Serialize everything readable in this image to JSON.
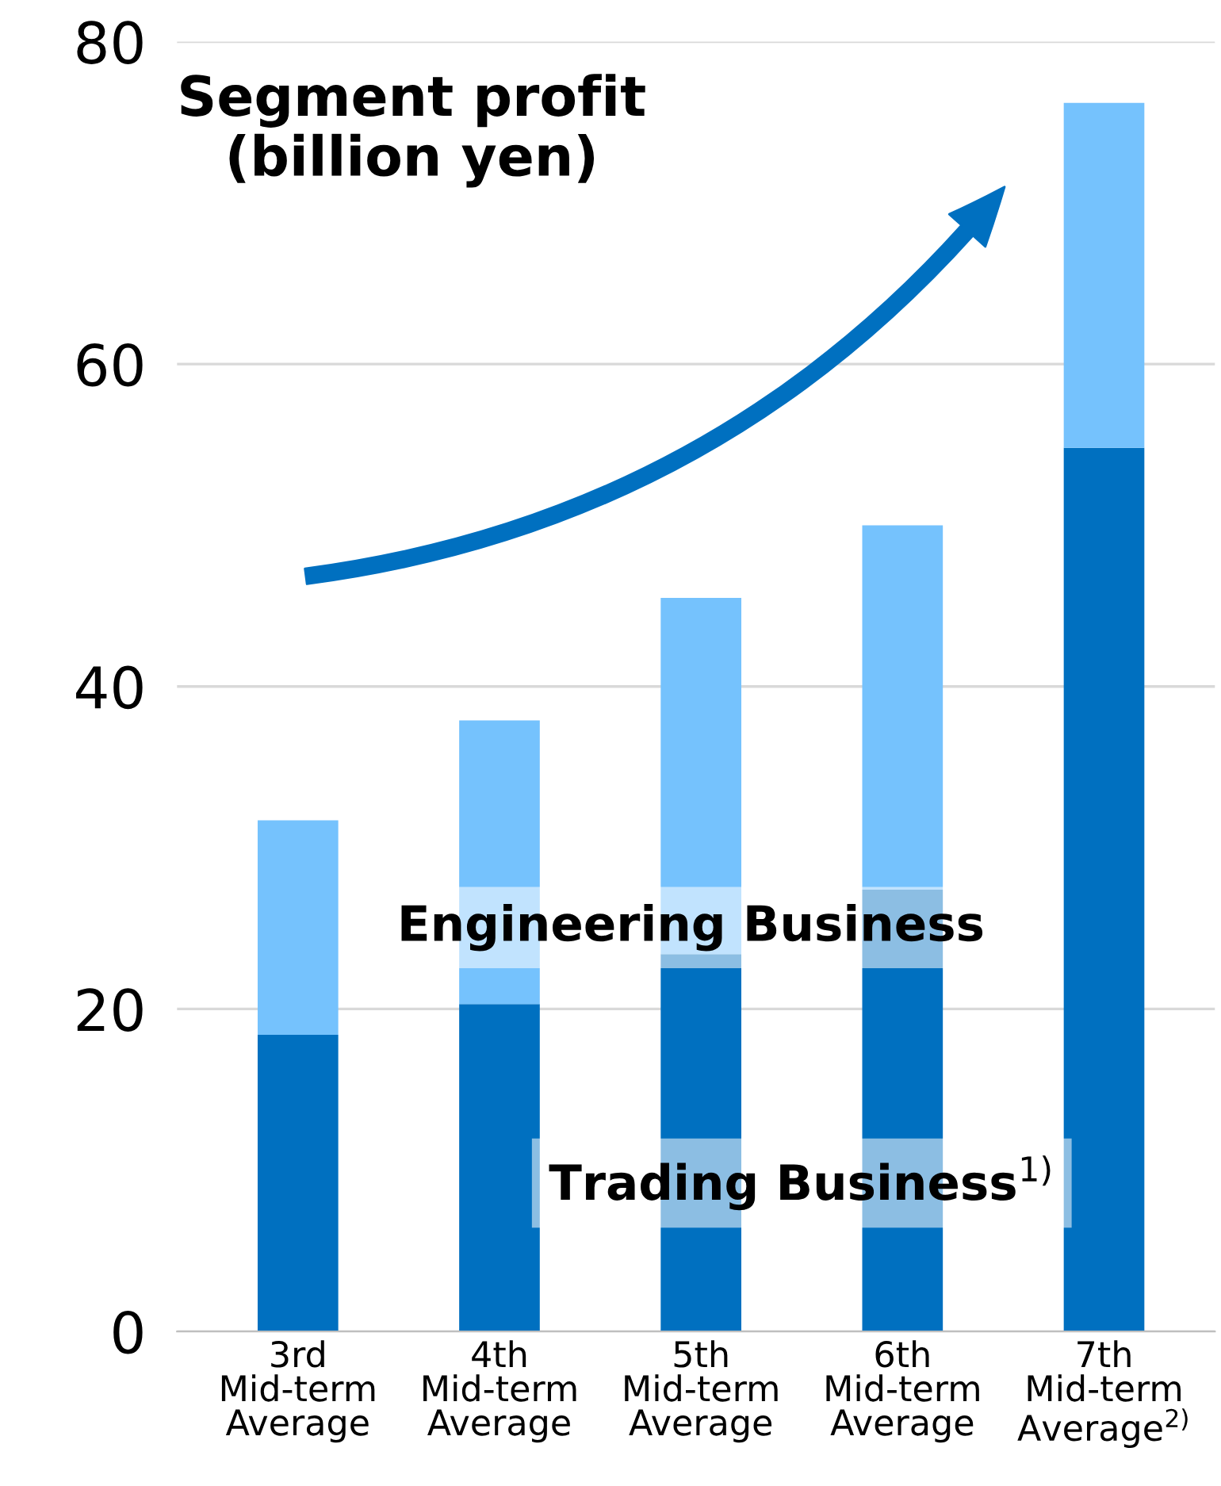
{
  "chart_data": {
    "type": "bar",
    "stacked": true,
    "title": "Segment profit\n(billion yen)",
    "categories": [
      "3rd\nMid-term\nAverage",
      "4th\nMid-term\nAverage",
      "5th\nMid-term\nAverage",
      "6th\nMid-term\nAverage",
      "7th\nMid-term\nAverage$^{2)}$"
    ],
    "series": [
      {
        "name": "Trading Business$^{1)}$",
        "color": "#0070c0",
        "values": [
          18.4,
          20.3,
          23.4,
          27.4,
          54.8
        ]
      },
      {
        "name": "Engineering Business",
        "color": "#75c2fd",
        "values": [
          13.3,
          17.6,
          22.1,
          22.6,
          21.4
        ]
      }
    ],
    "ylim": [
      0,
      80
    ],
    "yticks": [
      0,
      20,
      40,
      60,
      80
    ],
    "grid": "y",
    "legend": false
  }
}
